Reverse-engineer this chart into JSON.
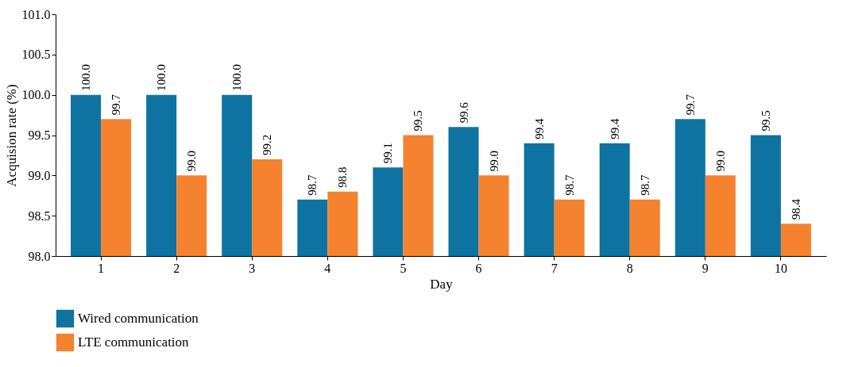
{
  "chart_data": {
    "type": "bar",
    "xlabel": "Day",
    "ylabel": "Acquision rate (%)",
    "categories": [
      "1",
      "2",
      "3",
      "4",
      "5",
      "6",
      "7",
      "8",
      "9",
      "10"
    ],
    "series": [
      {
        "name": "Wired communication",
        "color": "#0e73a0",
        "values": [
          100.0,
          100.0,
          100.0,
          98.7,
          99.1,
          99.6,
          99.4,
          99.4,
          99.7,
          99.5
        ],
        "value_labels": [
          "100.0",
          "100.0",
          "100.0",
          "98.7",
          "99.1",
          "99.6",
          "99.4",
          "99.4",
          "99.7",
          "99.5"
        ]
      },
      {
        "name": "LTE communication",
        "color": "#f5822f",
        "values": [
          99.7,
          99.0,
          99.2,
          98.8,
          99.5,
          99.0,
          98.7,
          98.7,
          99.0,
          98.4
        ],
        "value_labels": [
          "99.7",
          "99.0",
          "99.2",
          "98.8",
          "99.5",
          "99.0",
          "98.7",
          "98.7",
          "99.0",
          "98.4"
        ]
      }
    ],
    "ylim": [
      98.0,
      101.0
    ],
    "yticks": [
      {
        "value": 98,
        "label": "98.0"
      },
      {
        "value": 98.5,
        "label": "98.5"
      },
      {
        "value": 99,
        "label": "99.0"
      },
      {
        "value": 99.5,
        "label": "99.5"
      },
      {
        "value": 100,
        "label": "100.0"
      },
      {
        "value": 100.5,
        "label": "100.5"
      },
      {
        "value": 101,
        "label": "101.0"
      }
    ],
    "grid": false,
    "legend": "bottom left"
  }
}
